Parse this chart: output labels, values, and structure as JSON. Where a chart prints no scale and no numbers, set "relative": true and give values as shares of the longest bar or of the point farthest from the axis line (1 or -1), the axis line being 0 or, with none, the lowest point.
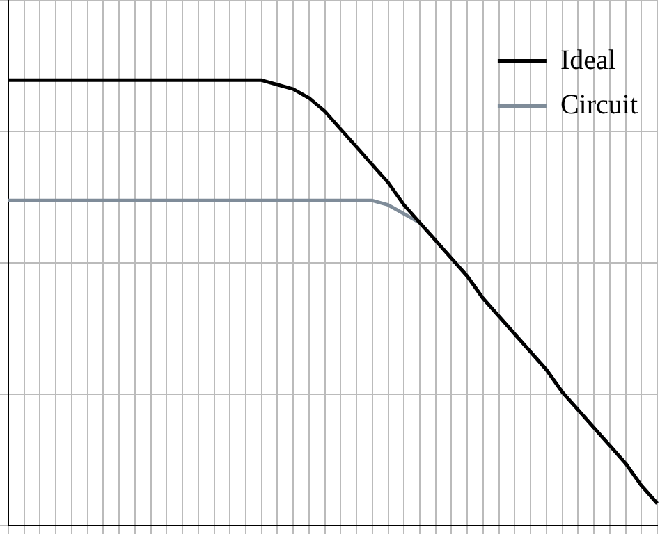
{
  "chart_data": {
    "type": "line",
    "relative": true,
    "grid": true,
    "legend": "top right",
    "marker": "none",
    "line_style": "solid",
    "categories": [
      null,
      null,
      null,
      null,
      null,
      null,
      null,
      null,
      null,
      null,
      null,
      null,
      null,
      null,
      null,
      null,
      null,
      null,
      null,
      null,
      null,
      null,
      null,
      null,
      null,
      null,
      null,
      null,
      null,
      null,
      null,
      null,
      null,
      null,
      null,
      null,
      null,
      null,
      null,
      null,
      null,
      null
    ],
    "series": [
      {
        "name": "Ideal",
        "color": "#000000",
        "values": [
          1,
          1,
          1,
          1,
          1,
          1,
          1,
          1,
          1,
          1,
          1,
          1,
          1,
          1,
          1,
          1,
          1,
          0.99,
          0.98,
          0.96,
          0.93,
          0.89,
          0.85,
          0.81,
          0.77,
          0.72,
          0.68,
          0.64,
          0.6,
          0.56,
          0.51,
          0.47,
          0.43,
          0.39,
          0.35,
          0.3,
          0.26,
          0.22,
          0.18,
          0.14,
          0.09,
          0.05
        ]
      },
      {
        "name": "Circuit",
        "color": "#7f8c99",
        "values": [
          0.73,
          0.73,
          0.73,
          0.73,
          0.73,
          0.73,
          0.73,
          0.73,
          0.73,
          0.73,
          0.73,
          0.73,
          0.73,
          0.73,
          0.73,
          0.73,
          0.73,
          0.73,
          0.73,
          0.73,
          0.73,
          0.73,
          0.73,
          0.73,
          0.72,
          0.7,
          0.68,
          0.64,
          0.6,
          0.56,
          0.51,
          0.47,
          0.43,
          0.39,
          0.35,
          0.3,
          0.26,
          0.22,
          0.18,
          0.14,
          0.09,
          0.05
        ]
      }
    ]
  }
}
